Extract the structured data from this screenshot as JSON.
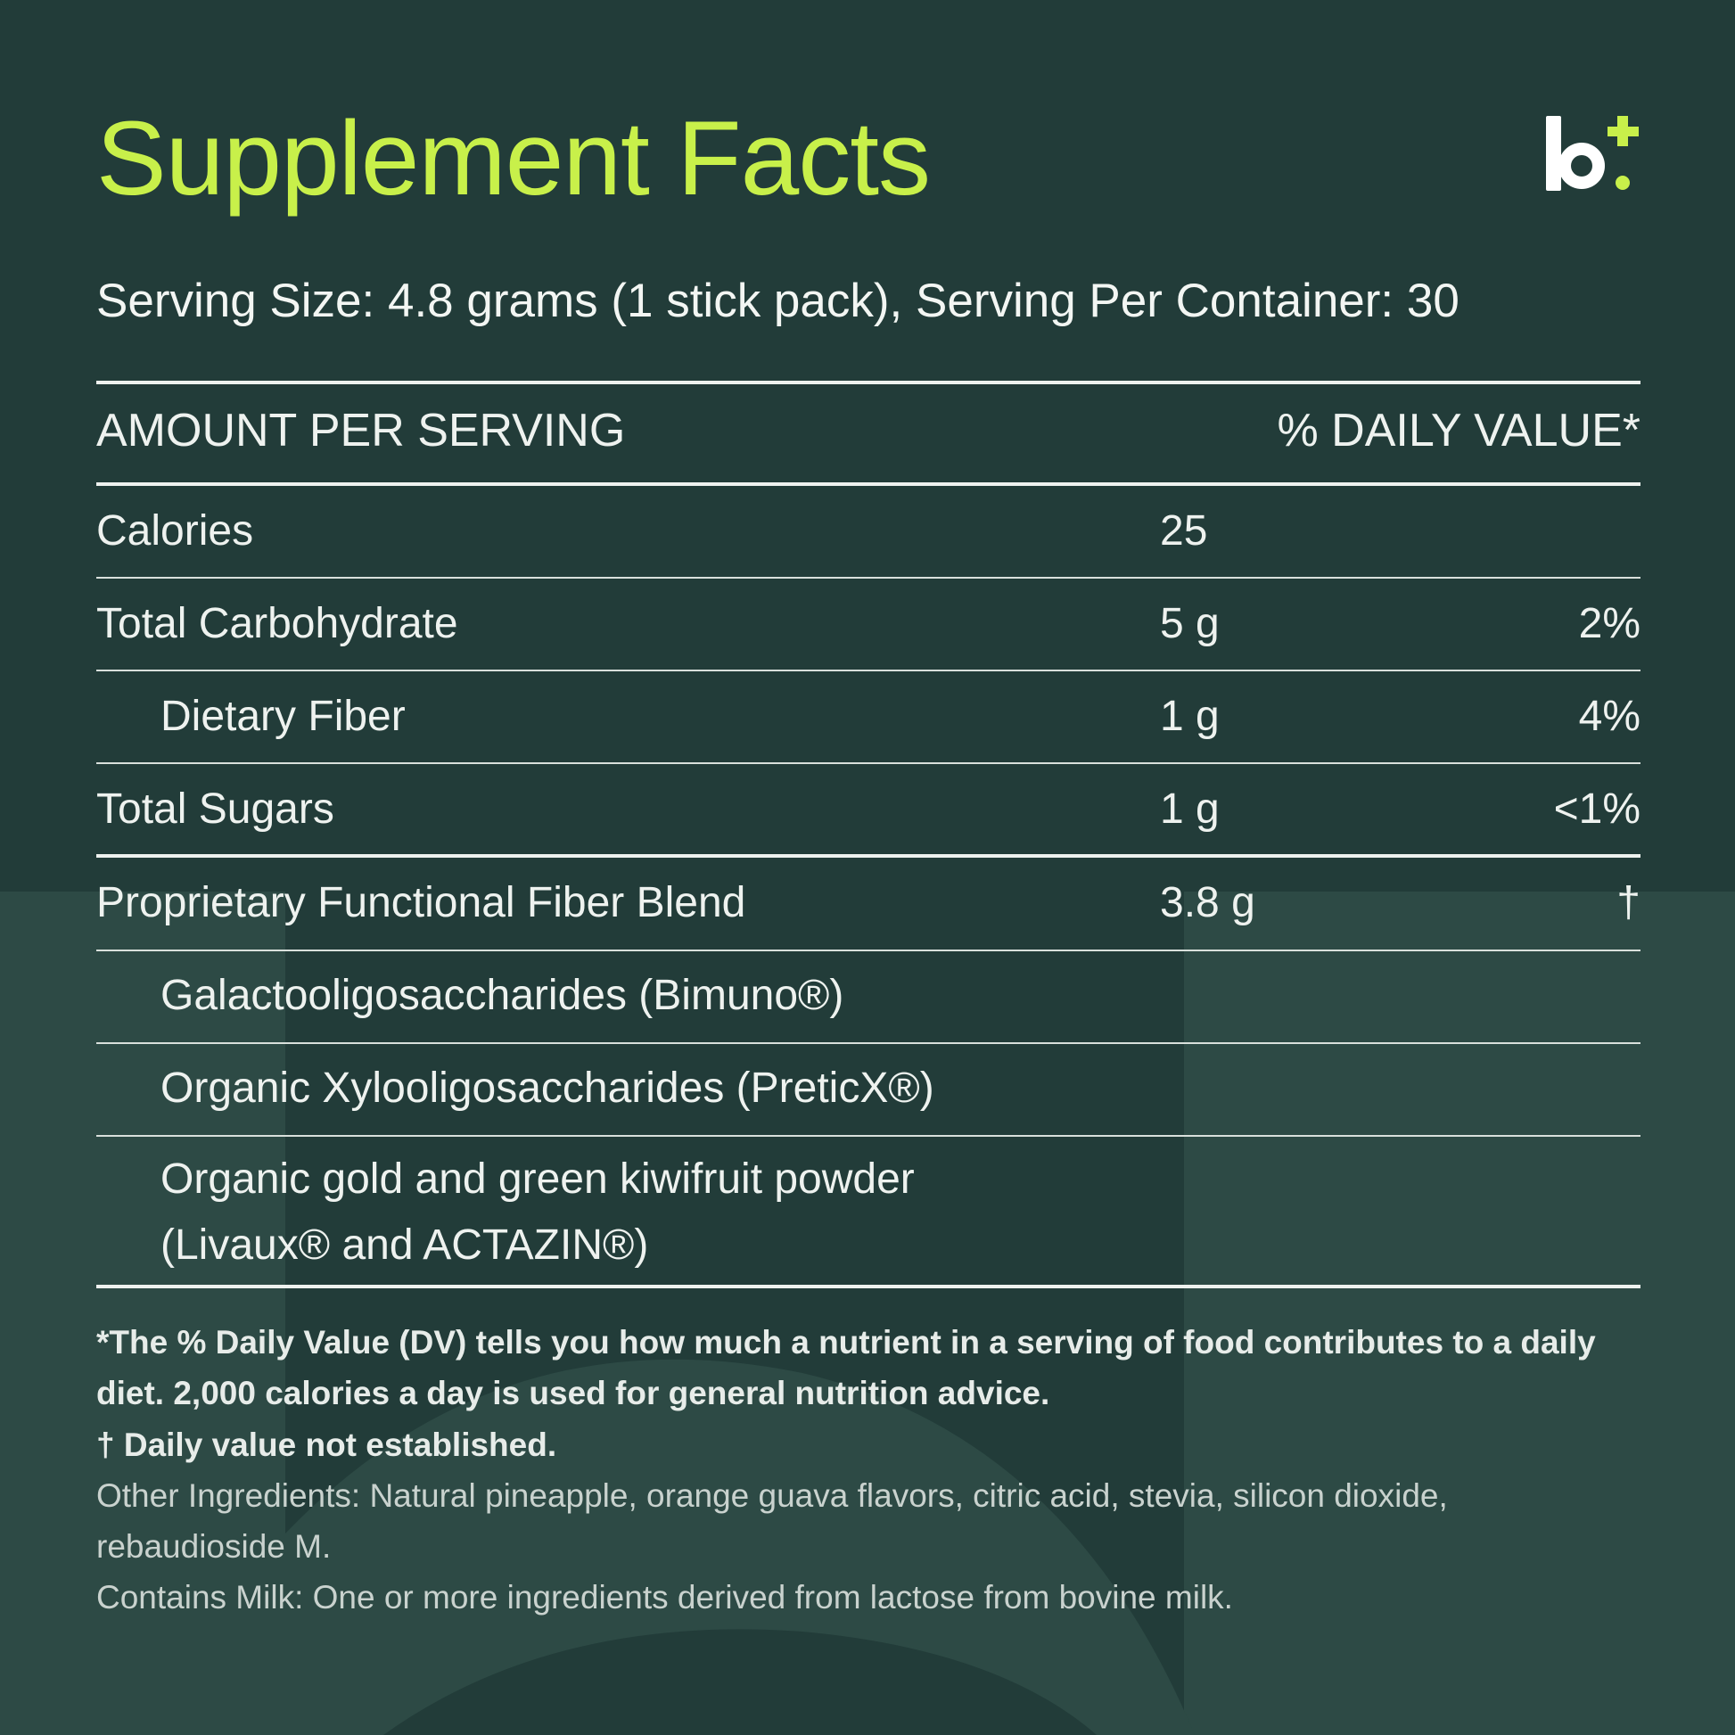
{
  "title": "Supplement Facts",
  "logo": {
    "icon": "b-plus-logo",
    "accent": "#c8f04a"
  },
  "serving": "Serving Size: 4.8 grams (1 stick pack), Serving Per Container: 30",
  "header": {
    "left": "AMOUNT PER SERVING",
    "right": "% DAILY VALUE*"
  },
  "rows": [
    {
      "label": "Calories",
      "amount": "25",
      "dv": ""
    },
    {
      "label": "Total Carbohydrate",
      "amount": "5 g",
      "dv": "2%"
    },
    {
      "label": "Dietary Fiber",
      "amount": "1 g",
      "dv": "4%"
    },
    {
      "label": "Total Sugars",
      "amount": "1 g",
      "dv": "<1%"
    },
    {
      "label": "Proprietary Functional Fiber Blend",
      "amount": "3.8 g",
      "dv": "†"
    },
    {
      "label": "Galactooligosaccharides (Bimuno®)"
    },
    {
      "label": "Organic Xylooligosaccharides (PreticX®)"
    },
    {
      "label_line1": "Organic gold and green kiwifruit powder",
      "label_line2": "(Livaux® and ACTAZIN®)"
    }
  ],
  "footnotes": {
    "dv_note": "*The % Daily Value (DV) tells you how much a nutrient in a serving of food contributes to a daily diet. 2,000 calories a day is used for general nutrition advice.",
    "dagger_note": "† Daily value not established.",
    "other_ingredients": "Other Ingredients: Natural pineapple, orange guava flavors, citric acid, stevia, silicon dioxide, rebaudioside M.",
    "allergen": "Contains Milk: One or more ingredients derived from lactose from bovine milk."
  },
  "colors": {
    "background": "#223c39",
    "decor": "#2d4a45",
    "title": "#c8f04a",
    "text": "#eef2ef"
  }
}
